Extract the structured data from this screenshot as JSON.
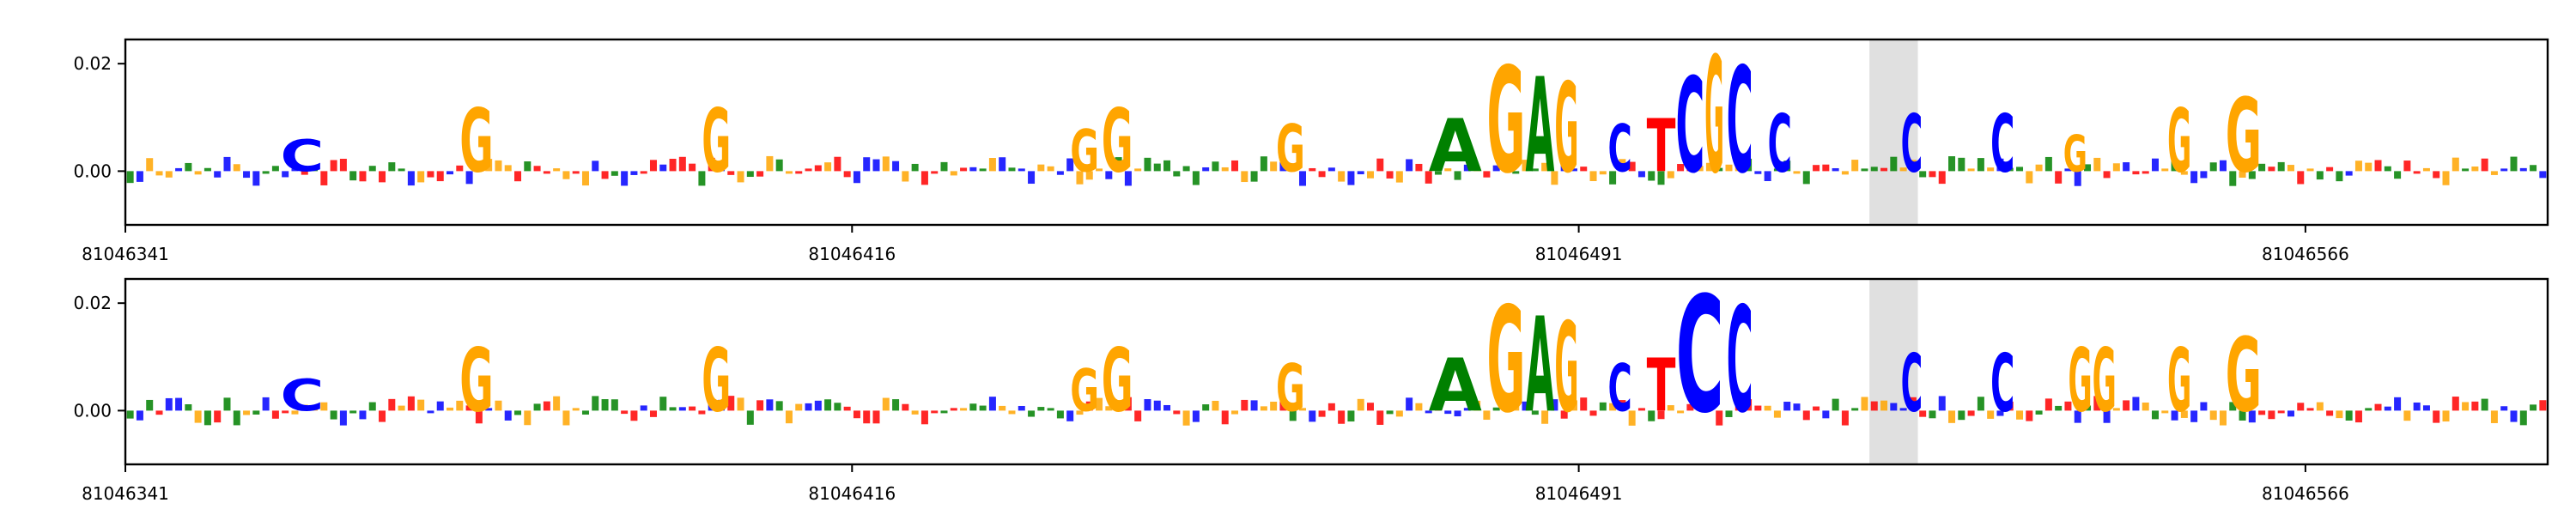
{
  "chart_data": [
    {
      "type": "sequence-logo",
      "title": "",
      "xlabel": "",
      "ylabel": "",
      "ylim": [
        -0.01,
        0.0245
      ],
      "yticks": [
        {
          "value": 0.0,
          "label": "0.00"
        },
        {
          "value": 0.02,
          "label": "0.02"
        }
      ],
      "xlim": [
        81046341,
        81046591
      ],
      "xticks": [
        {
          "value": 81046341,
          "label": "81046341"
        },
        {
          "value": 81046416,
          "label": "81046416"
        },
        {
          "value": 81046491,
          "label": "81046491"
        },
        {
          "value": 81046566,
          "label": "81046566"
        }
      ],
      "highlight": {
        "start": 81046521,
        "end": 81046526
      },
      "grid": false,
      "series": [
        {
          "segments": [
            {
              "base": "C",
              "score": 0.006,
              "xfrac": [
                0.064,
                0.082
              ]
            },
            {
              "base": "G",
              "score": 0.012,
              "xfrac": [
                0.138,
                0.152
              ]
            },
            {
              "base": "G",
              "score": 0.012,
              "xfrac": [
                0.238,
                0.25
              ]
            },
            {
              "base": "G",
              "score": 0.008,
              "xfrac": [
                0.39,
                0.402
              ]
            },
            {
              "base": "G",
              "score": 0.012,
              "xfrac": [
                0.403,
                0.416
              ]
            },
            {
              "base": "G",
              "score": 0.009,
              "xfrac": [
                0.475,
                0.487
              ]
            },
            {
              "base": "A",
              "score": 0.01,
              "xfrac": [
                0.538,
                0.56
              ]
            },
            {
              "base": "G",
              "score": 0.02,
              "xfrac": [
                0.562,
                0.578
              ]
            },
            {
              "base": "A",
              "score": 0.018,
              "xfrac": [
                0.578,
                0.59
              ]
            },
            {
              "base": "G",
              "score": 0.017,
              "xfrac": [
                0.59,
                0.6
              ]
            },
            {
              "base": "C",
              "score": 0.009,
              "xfrac": [
                0.612,
                0.622
              ]
            },
            {
              "base": "T",
              "score": 0.01,
              "xfrac": [
                0.628,
                0.64
              ]
            },
            {
              "base": "C",
              "score": 0.018,
              "xfrac": [
                0.64,
                0.652
              ]
            },
            {
              "base": "G",
              "score": 0.022,
              "xfrac": [
                0.652,
                0.66
              ]
            },
            {
              "base": "C",
              "score": 0.02,
              "xfrac": [
                0.661,
                0.672
              ]
            },
            {
              "base": "C",
              "score": 0.011,
              "xfrac": [
                0.678,
                0.688
              ]
            },
            {
              "base": "C",
              "score": 0.011,
              "xfrac": [
                0.733,
                0.742
              ]
            },
            {
              "base": "C",
              "score": 0.011,
              "xfrac": [
                0.77,
                0.78
              ]
            },
            {
              "base": "G",
              "score": 0.007,
              "xfrac": [
                0.8,
                0.81
              ]
            },
            {
              "base": "G",
              "score": 0.012,
              "xfrac": [
                0.843,
                0.853
              ]
            },
            {
              "base": "G",
              "score": 0.014,
              "xfrac": [
                0.867,
                0.882
              ]
            }
          ]
        },
        {
          "segments": [
            {
              "base": "C",
              "score": 0.006,
              "xfrac": [
                0.064,
                0.082
              ]
            },
            {
              "base": "G",
              "score": 0.012,
              "xfrac": [
                0.138,
                0.152
              ]
            },
            {
              "base": "G",
              "score": 0.012,
              "xfrac": [
                0.238,
                0.25
              ]
            },
            {
              "base": "G",
              "score": 0.008,
              "xfrac": [
                0.39,
                0.402
              ]
            },
            {
              "base": "G",
              "score": 0.012,
              "xfrac": [
                0.403,
                0.416
              ]
            },
            {
              "base": "G",
              "score": 0.009,
              "xfrac": [
                0.475,
                0.487
              ]
            },
            {
              "base": "A",
              "score": 0.01,
              "xfrac": [
                0.538,
                0.56
              ]
            },
            {
              "base": "G",
              "score": 0.02,
              "xfrac": [
                0.562,
                0.578
              ]
            },
            {
              "base": "A",
              "score": 0.018,
              "xfrac": [
                0.578,
                0.59
              ]
            },
            {
              "base": "G",
              "score": 0.017,
              "xfrac": [
                0.59,
                0.6
              ]
            },
            {
              "base": "C",
              "score": 0.009,
              "xfrac": [
                0.612,
                0.622
              ]
            },
            {
              "base": "T",
              "score": 0.01,
              "xfrac": [
                0.628,
                0.64
              ]
            },
            {
              "base": "C",
              "score": 0.022,
              "xfrac": [
                0.64,
                0.66
              ]
            },
            {
              "base": "C",
              "score": 0.02,
              "xfrac": [
                0.661,
                0.672
              ]
            },
            {
              "base": "C",
              "score": 0.011,
              "xfrac": [
                0.733,
                0.742
              ]
            },
            {
              "base": "C",
              "score": 0.011,
              "xfrac": [
                0.77,
                0.78
              ]
            },
            {
              "base": "G",
              "score": 0.012,
              "xfrac": [
                0.802,
                0.812
              ]
            },
            {
              "base": "G",
              "score": 0.012,
              "xfrac": [
                0.812,
                0.822
              ]
            },
            {
              "base": "G",
              "score": 0.012,
              "xfrac": [
                0.843,
                0.853
              ]
            },
            {
              "base": "G",
              "score": 0.014,
              "xfrac": [
                0.867,
                0.882
              ]
            }
          ]
        }
      ]
    }
  ],
  "colors": {
    "A": "#008000",
    "C": "#0000ff",
    "G": "#ffa500",
    "T": "#ff0000",
    "highlight": "#e0e0e0",
    "axis": "#000000"
  }
}
